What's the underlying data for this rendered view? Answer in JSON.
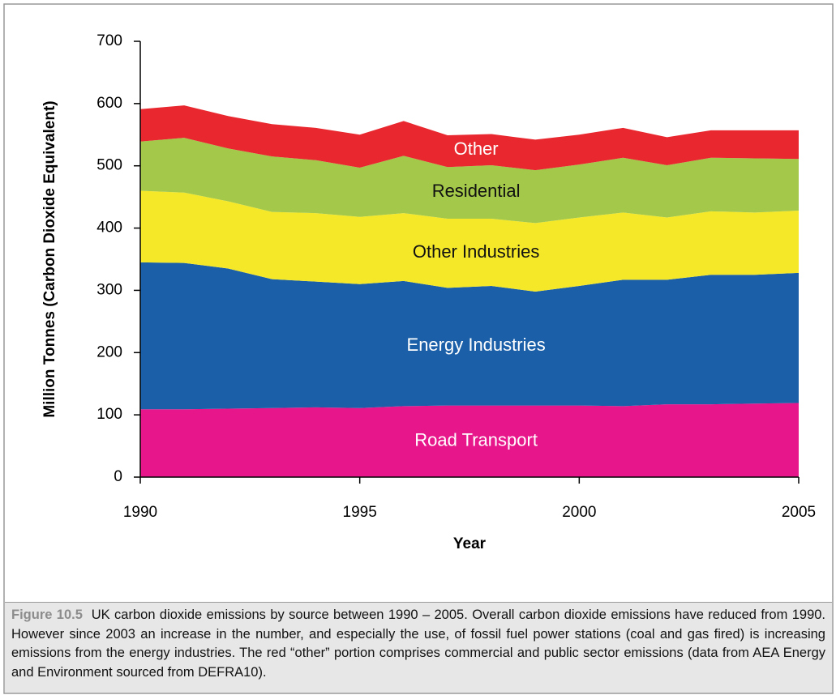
{
  "chart_data": {
    "type": "stacked_area",
    "x": [
      1990,
      1991,
      1992,
      1993,
      1994,
      1995,
      1996,
      1997,
      1998,
      1999,
      2000,
      2001,
      2002,
      2003,
      2004,
      2005
    ],
    "xlim": [
      1990,
      2005
    ],
    "xticks": [
      1990,
      1995,
      2000,
      2005
    ],
    "ylim": [
      0,
      700
    ],
    "yticks": [
      0,
      100,
      200,
      300,
      400,
      500,
      600,
      700
    ],
    "xlabel": "Year",
    "ylabel": "Million Tonnes (Carbon Dioxide Equivalent)",
    "series": [
      {
        "name": "Road Transport",
        "color": "#e8168b",
        "values": [
          109,
          109,
          110,
          111,
          112,
          111,
          114,
          115,
          115,
          115,
          115,
          114,
          117,
          117,
          118,
          119
        ]
      },
      {
        "name": "Energy Industries",
        "color": "#1a5fa8",
        "values": [
          236,
          235,
          225,
          207,
          202,
          199,
          201,
          189,
          192,
          183,
          192,
          203,
          200,
          208,
          207,
          209
        ]
      },
      {
        "name": "Other Industries",
        "color": "#f5e829",
        "values": [
          115,
          113,
          108,
          108,
          110,
          108,
          109,
          111,
          108,
          110,
          110,
          108,
          100,
          102,
          100,
          100
        ]
      },
      {
        "name": "Residential",
        "color": "#a3c84a",
        "values": [
          79,
          88,
          85,
          89,
          85,
          79,
          92,
          83,
          86,
          85,
          85,
          88,
          84,
          86,
          87,
          83
        ]
      },
      {
        "name": "Other",
        "color": "#e8282e",
        "values": [
          52,
          52,
          52,
          52,
          52,
          53,
          56,
          51,
          50,
          49,
          48,
          48,
          45,
          44,
          45,
          46
        ]
      }
    ]
  },
  "caption": {
    "label": "Figure 10.5",
    "text": "UK carbon dioxide emissions by source between 1990 – 2005. Overall carbon dioxide emissions have reduced from 1990.  However since 2003 an increase in the number, and especially the use, of fossil fuel power stations (coal and gas fired) is increasing emissions from the energy industries. The red “other” portion comprises commercial and public sector emissions (data from AEA Energy and Environment sourced from DEFRA10)."
  }
}
